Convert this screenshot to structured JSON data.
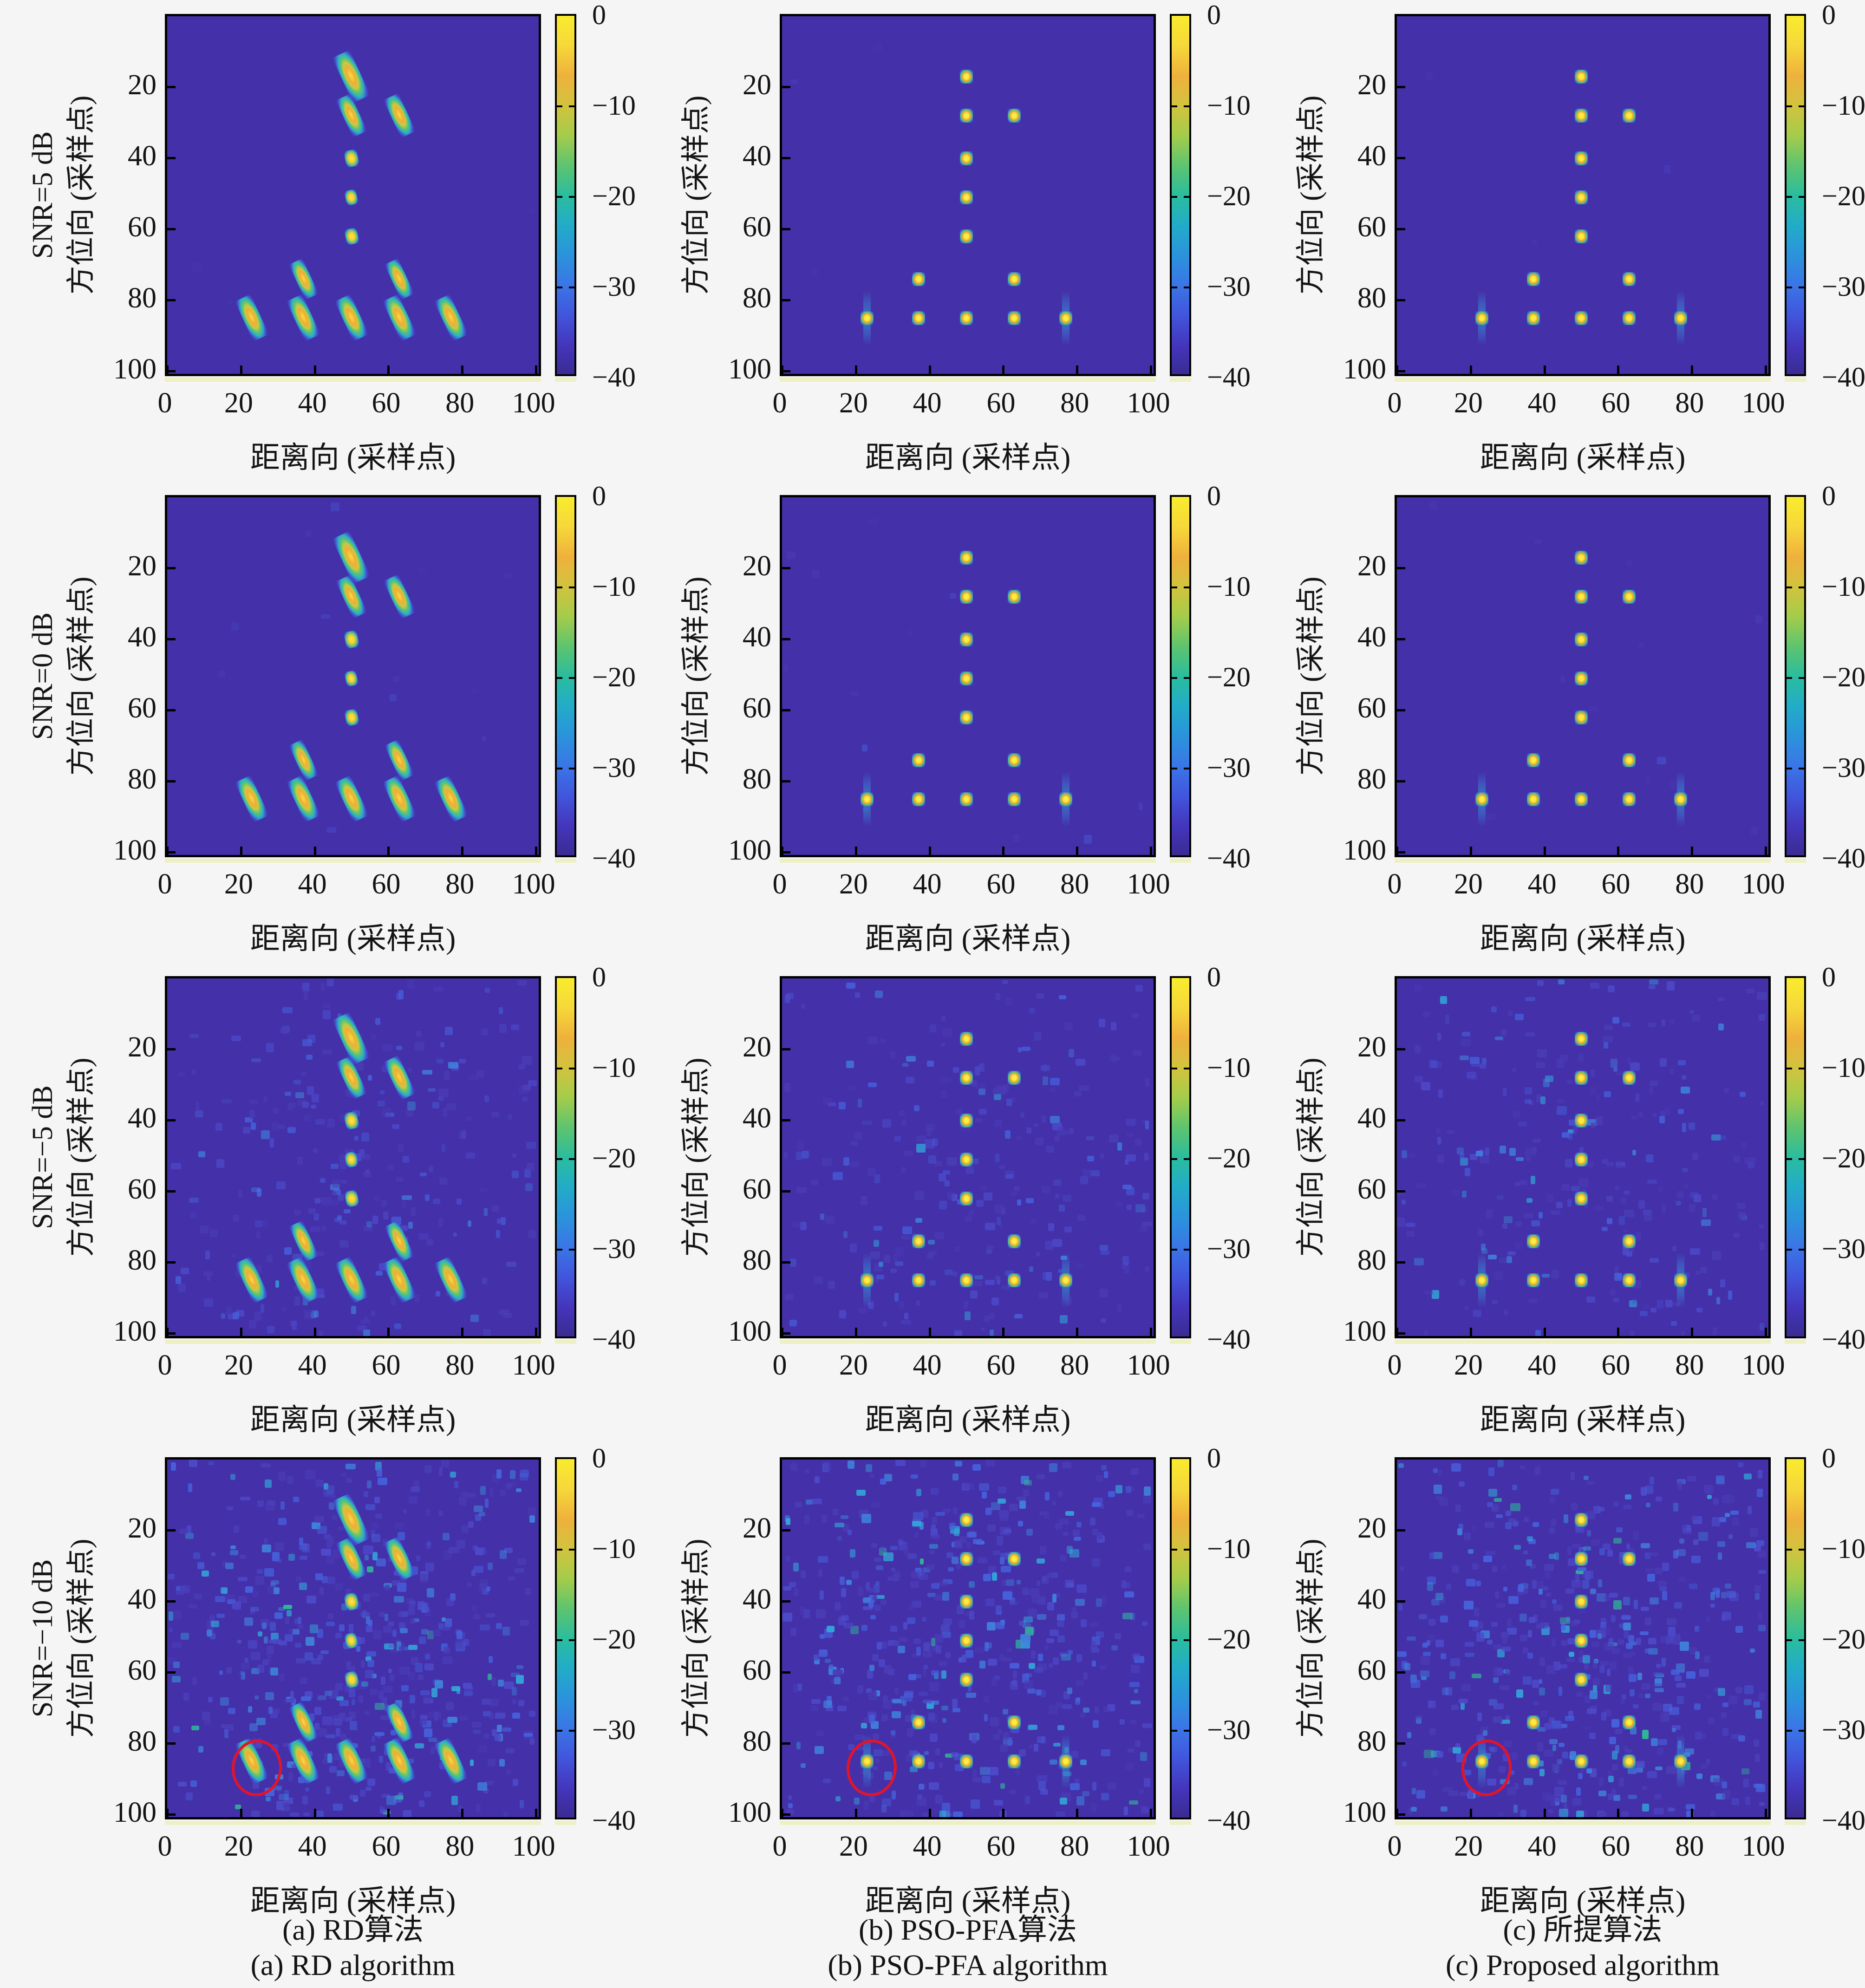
{
  "figure": {
    "rows": [
      {
        "snr_label": "SNR=5 dB",
        "noise": "none"
      },
      {
        "snr_label": "SNR=0 dB",
        "noise": "very-low"
      },
      {
        "snr_label": "SNR=−5 dB",
        "noise": "medium"
      },
      {
        "snr_label": "SNR=−10 dB",
        "noise": "high"
      }
    ],
    "columns": [
      {
        "id": "rd",
        "psf": "elongated",
        "caption_zh": "(a) RD算法",
        "caption_en": "(a) RD algorithm"
      },
      {
        "id": "pso-pfa",
        "psf": "point",
        "caption_zh": "(b) PSO-PFA算法",
        "caption_en": "(b) PSO-PFA algorithm"
      },
      {
        "id": "proposed",
        "psf": "point",
        "caption_zh": "(c) 所提算法",
        "caption_en": "(c) Proposed algorithm"
      }
    ],
    "axes": {
      "xlabel": "距离向 (采样点)",
      "ylabel": "方位向 (采样点)",
      "xtick_labels": [
        "0",
        "20",
        "40",
        "60",
        "80",
        "100"
      ],
      "xticks": [
        0,
        20,
        40,
        60,
        80,
        100
      ],
      "ytick_labels": [
        "20",
        "40",
        "60",
        "80",
        "100"
      ],
      "yticks": [
        20,
        40,
        60,
        80,
        100
      ]
    },
    "colorbar": {
      "tick_labels": [
        "0",
        "−10",
        "−20",
        "−30",
        "−40"
      ],
      "max_db": 0,
      "min_db": -40
    },
    "colors": {
      "page_bg": "#f5f5f6",
      "plot_bg": "#4431aa",
      "highlight_red": "#e3142a",
      "parula_stops": [
        "#f9eb2e",
        "#f6d83a",
        "#efb13c",
        "#d2c33e",
        "#a5cc4a",
        "#5ec46f",
        "#2bbd9d",
        "#22acc8",
        "#2b93dc",
        "#3a76e6",
        "#4156dd",
        "#4436bd",
        "#3a2b92"
      ]
    }
  },
  "chart_data": {
    "type": "heatmap",
    "layout": "4 rows (SNR = 5, 0, −5, −10 dB) × 3 columns (RD, PSO-PFA, Proposed algorithms)",
    "xlabel": "距离向 (采样点)",
    "ylabel": "方位向 (采样点)",
    "x_range": [
      0,
      100
    ],
    "y_range": [
      0,
      100
    ],
    "colormap": "parula",
    "clim_db": [
      -40,
      0
    ],
    "colorbar_ticks": [
      0,
      -10,
      -20,
      -30,
      -40
    ],
    "targets": [
      {
        "x": 50,
        "y": 17,
        "rd_psf": "blob",
        "scale": 1.22
      },
      {
        "x": 50,
        "y": 28,
        "rd_psf": "blob",
        "scale": 1.0
      },
      {
        "x": 63,
        "y": 28,
        "rd_psf": "blob",
        "scale": 1.02
      },
      {
        "x": 50,
        "y": 40,
        "rd_psf": "dot",
        "scale": 1.0
      },
      {
        "x": 50,
        "y": 51,
        "rd_psf": "dot",
        "scale": 0.9
      },
      {
        "x": 50,
        "y": 62,
        "rd_psf": "dot",
        "scale": 0.95
      },
      {
        "x": 37,
        "y": 74,
        "rd_psf": "blob",
        "scale": 0.95
      },
      {
        "x": 63,
        "y": 74,
        "rd_psf": "blob",
        "scale": 0.95
      },
      {
        "x": 23,
        "y": 85,
        "rd_psf": "blob",
        "scale": 1.08,
        "smear": true
      },
      {
        "x": 37,
        "y": 85,
        "rd_psf": "blob",
        "scale": 1.08
      },
      {
        "x": 50,
        "y": 85,
        "rd_psf": "blob",
        "scale": 1.08
      },
      {
        "x": 63,
        "y": 85,
        "rd_psf": "blob",
        "scale": 1.08
      },
      {
        "x": 77,
        "y": 85,
        "rd_psf": "blob",
        "scale": 1.08,
        "smear": true
      }
    ],
    "highlight_circles": [
      {
        "row_snr": "SNR=−10 dB",
        "col": "rd",
        "x": 23.5,
        "y": 86
      },
      {
        "row_snr": "SNR=−10 dB",
        "col": "pso-pfa",
        "x": 23.5,
        "y": 86
      },
      {
        "row_snr": "SNR=−10 dB",
        "col": "proposed",
        "x": 23.5,
        "y": 86
      }
    ]
  }
}
